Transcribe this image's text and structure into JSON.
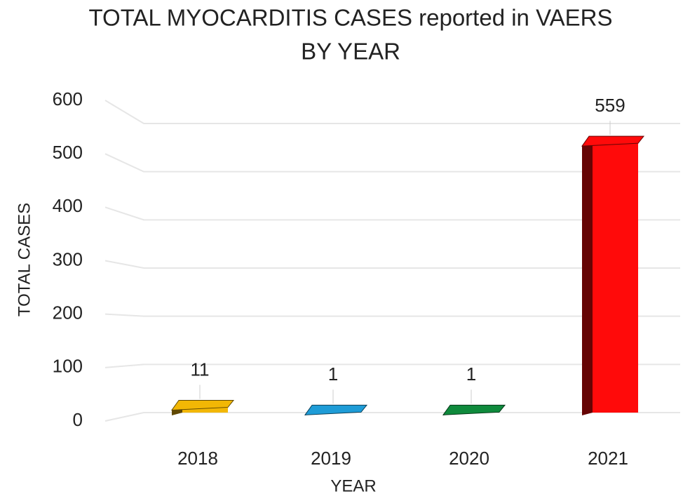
{
  "chart_data": {
    "type": "bar3d",
    "title": [
      "TOTAL MYOCARDITIS CASES reported in VAERS",
      "BY YEAR"
    ],
    "x_label": "YEAR",
    "y_label": "TOTAL CASES",
    "categories": [
      "2018",
      "2019",
      "2020",
      "2021"
    ],
    "values": [
      11,
      1,
      1,
      559
    ],
    "colors": [
      "#f2b705",
      "#1e9cd7",
      "#0f8a3c",
      "#ff0a0a"
    ],
    "ylim": [
      0,
      600
    ],
    "yticks": [
      0,
      100,
      200,
      300,
      400,
      500,
      600
    ],
    "grid": true
  }
}
